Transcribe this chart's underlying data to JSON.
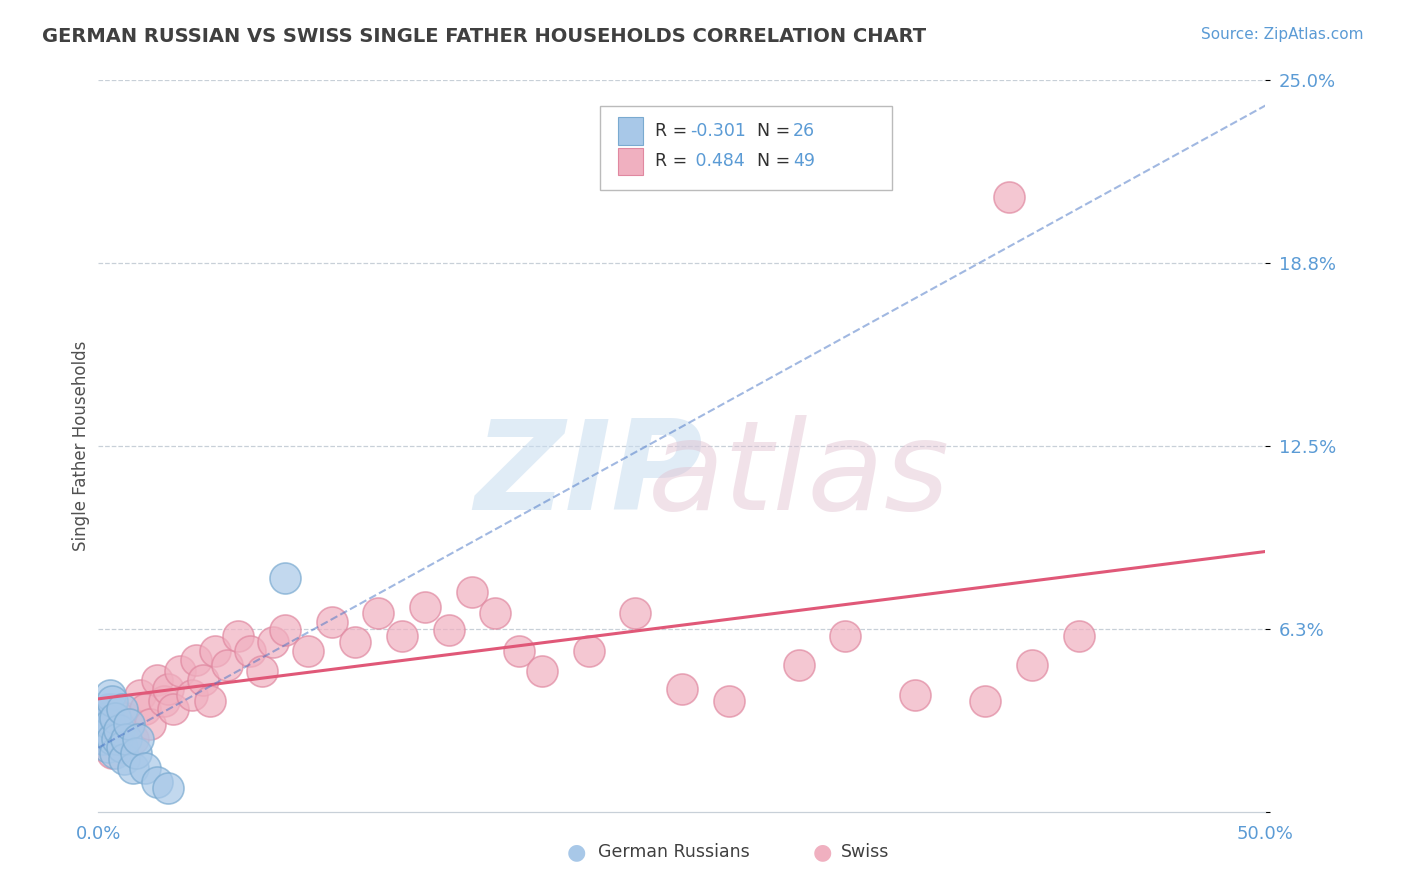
{
  "title": "GERMAN RUSSIAN VS SWISS SINGLE FATHER HOUSEHOLDS CORRELATION CHART",
  "source": "Source: ZipAtlas.com",
  "ylabel": "Single Father Households",
  "xmin": 0.0,
  "xmax": 0.5,
  "ymin": 0.0,
  "ymax": 0.25,
  "yticks": [
    0.0,
    0.0625,
    0.125,
    0.1875,
    0.25
  ],
  "ytick_labels": [
    "",
    "6.3%",
    "12.5%",
    "18.8%",
    "25.0%"
  ],
  "xlabel_ticks": [
    0.0,
    0.5
  ],
  "xlabel_labels": [
    "0.0%",
    "50.0%"
  ],
  "label1": "German Russians",
  "label2": "Swiss",
  "color_blue_fill": "#a8c8e8",
  "color_blue_edge": "#7aaad0",
  "color_pink_fill": "#f0b0c0",
  "color_pink_edge": "#e088a0",
  "color_blue_line": "#4472c4",
  "color_pink_line": "#e05878",
  "color_title": "#404040",
  "color_source": "#5b9bd5",
  "color_axis_labels": "#5b9bd5",
  "color_grid": "#c8d0d8",
  "background_color": "#ffffff",
  "watermark_zip_color": "#c8ddf0",
  "watermark_atlas_color": "#e0c0d0",
  "gr_x": [
    0.001,
    0.002,
    0.003,
    0.003,
    0.004,
    0.004,
    0.005,
    0.005,
    0.006,
    0.006,
    0.007,
    0.007,
    0.008,
    0.009,
    0.01,
    0.01,
    0.011,
    0.012,
    0.013,
    0.015,
    0.016,
    0.017,
    0.02,
    0.025,
    0.03,
    0.08
  ],
  "gr_y": [
    0.03,
    0.025,
    0.028,
    0.032,
    0.022,
    0.035,
    0.03,
    0.04,
    0.025,
    0.038,
    0.02,
    0.032,
    0.025,
    0.028,
    0.022,
    0.035,
    0.018,
    0.025,
    0.03,
    0.015,
    0.02,
    0.025,
    0.015,
    0.01,
    0.008,
    0.08
  ],
  "sw_x": [
    0.002,
    0.004,
    0.006,
    0.006,
    0.008,
    0.01,
    0.012,
    0.015,
    0.018,
    0.02,
    0.022,
    0.025,
    0.028,
    0.03,
    0.032,
    0.035,
    0.04,
    0.042,
    0.045,
    0.048,
    0.05,
    0.055,
    0.06,
    0.065,
    0.07,
    0.075,
    0.08,
    0.09,
    0.1,
    0.11,
    0.12,
    0.13,
    0.14,
    0.15,
    0.16,
    0.17,
    0.18,
    0.19,
    0.21,
    0.23,
    0.25,
    0.27,
    0.3,
    0.32,
    0.35,
    0.38,
    0.4,
    0.42,
    0.39
  ],
  "sw_y": [
    0.025,
    0.03,
    0.02,
    0.035,
    0.025,
    0.028,
    0.032,
    0.025,
    0.04,
    0.035,
    0.03,
    0.045,
    0.038,
    0.042,
    0.035,
    0.048,
    0.04,
    0.052,
    0.045,
    0.038,
    0.055,
    0.05,
    0.06,
    0.055,
    0.048,
    0.058,
    0.062,
    0.055,
    0.065,
    0.058,
    0.068,
    0.06,
    0.07,
    0.062,
    0.075,
    0.068,
    0.055,
    0.048,
    0.055,
    0.068,
    0.042,
    0.038,
    0.05,
    0.06,
    0.04,
    0.038,
    0.05,
    0.06,
    0.21
  ]
}
